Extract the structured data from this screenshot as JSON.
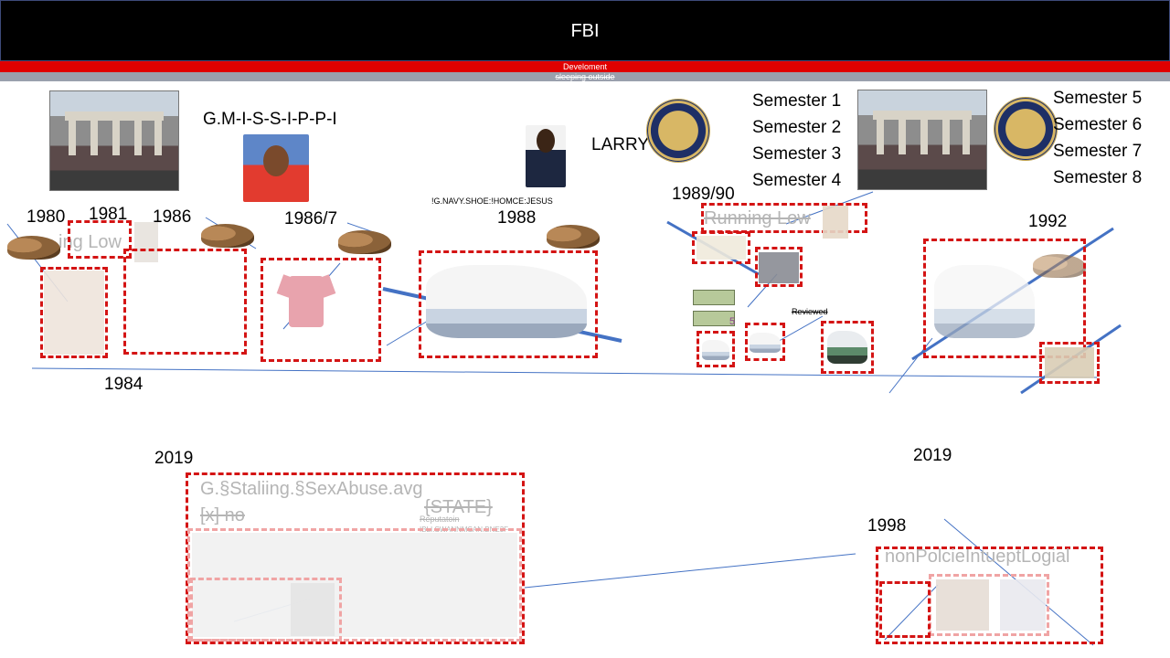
{
  "header": {
    "title": "FBI",
    "subtitle_red": "Develoment",
    "subtitle_gray": "sleeping outside"
  },
  "labels": {
    "gmississippi": "G.M-I-S-S-I-P-P-I",
    "larry": "LARRY",
    "navy_shoe": "!G.NAVY.SHOE:!HOMCE:JESUS",
    "reviewed": "Reviewed"
  },
  "semesters_left": [
    "Semester 1",
    "Semester 2",
    "Semester 3",
    "Semester 4"
  ],
  "semesters_right": [
    "Semester 5",
    "Semester 6",
    "Semester 7",
    "Semester 8"
  ],
  "years": {
    "y1980": "1980",
    "y1981": "1981",
    "y1986": "1986",
    "y1986_7": "1986/7",
    "y1988": "1988",
    "y1989_90": "1989/90",
    "y1992": "1992",
    "y1984": "1984",
    "y2019_left": "2019",
    "y2019_right": "2019",
    "y1998": "1998"
  },
  "faded": {
    "running_low_1": "Running Low",
    "running_low_2": "ing Low",
    "staliing": "G.§Staliing.§SexAbuse.avg",
    "x_no": "[x] no",
    "state": "{STATE}",
    "reputation": "Reputatoin",
    "small_code": "IBLI.SWANNMSAN.BNE3F",
    "non_police": "nonPolcieIntueptLogial"
  },
  "money_label": "5",
  "colors": {
    "header_bg": "#000000",
    "red_bar": "#e00000",
    "gray_bar": "#9aa0ad",
    "dash_red": "#d41414",
    "line_blue": "#4472c4"
  },
  "icons": [
    "gate-photo",
    "portrait-photo",
    "seal-icon",
    "slipper-icon",
    "sneaker-icon",
    "shirt-icon",
    "money-icon"
  ]
}
